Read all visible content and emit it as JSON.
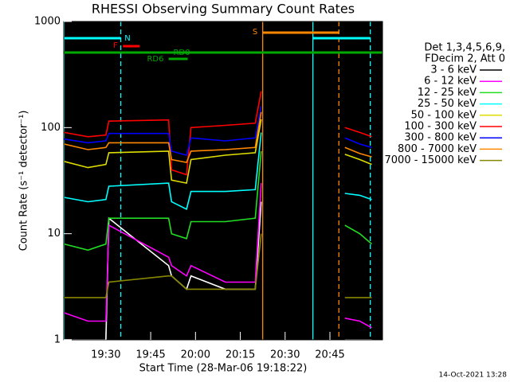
{
  "chart_data": {
    "type": "line",
    "title": "RHESSI Observing Summary Count Rates",
    "xlabel": "Start Time (28-Mar-06 19:18:22)",
    "ylabel": "Count Rate (s⁻¹ detector⁻¹)",
    "legend_header": [
      "Det 1,3,4,5,6,9,",
      "FDecim 2, Att 0"
    ],
    "footer": "14-Oct-2021 13:28",
    "log_y": true,
    "xlim": [
      15.9,
      122.6
    ],
    "xticks": [
      {
        "value": 30,
        "label": "19:30"
      },
      {
        "value": 45,
        "label": "19:45"
      },
      {
        "value": 60,
        "label": "20:00"
      },
      {
        "value": 75,
        "label": "20:15"
      },
      {
        "value": 90,
        "label": "20:30"
      },
      {
        "value": 105,
        "label": "20:45"
      }
    ],
    "ylim": [
      1,
      1000
    ],
    "yticks": [
      1,
      10,
      100,
      1000
    ],
    "x": [
      16,
      24,
      30,
      31,
      51,
      52,
      57,
      58.5,
      70,
      80,
      82,
      96,
      110,
      115,
      119
    ],
    "series": [
      {
        "name": "3 - 6 keV",
        "color": "#ffffff",
        "values": [
          1,
          1,
          1,
          14,
          5,
          4,
          3,
          4,
          3,
          3,
          20,
          null,
          1,
          1,
          1
        ]
      },
      {
        "name": "6 - 12 keV",
        "color": "#ff00ff",
        "values": [
          1.8,
          1.5,
          1.5,
          12,
          6,
          5,
          4,
          5,
          3.5,
          3.5,
          30,
          null,
          1.6,
          1.5,
          1.3
        ]
      },
      {
        "name": "12 - 25 keV",
        "color": "#22dd22",
        "values": [
          8,
          7,
          8,
          14,
          14,
          10,
          9,
          13,
          13,
          14,
          60,
          null,
          12,
          10,
          8
        ]
      },
      {
        "name": "25 - 50 keV",
        "color": "#00ffff",
        "values": [
          22,
          20,
          21,
          28,
          30,
          20,
          17,
          25,
          25,
          26,
          90,
          null,
          24,
          23,
          21
        ]
      },
      {
        "name": "50 - 100 keV",
        "color": "#dddd00",
        "values": [
          48,
          42,
          45,
          58,
          60,
          32,
          30,
          50,
          55,
          58,
          120,
          null,
          56,
          50,
          45
        ]
      },
      {
        "name": "100 - 300 keV",
        "color": "#ff0000",
        "values": [
          90,
          82,
          85,
          115,
          118,
          40,
          36,
          100,
          105,
          110,
          220,
          null,
          100,
          90,
          82
        ]
      },
      {
        "name": "300 - 800 keV",
        "color": "#0000ff",
        "values": [
          78,
          72,
          75,
          88,
          88,
          60,
          55,
          80,
          75,
          80,
          160,
          null,
          80,
          70,
          65
        ]
      },
      {
        "name": "800 - 7000 keV",
        "color": "#ff8800",
        "values": [
          70,
          62,
          65,
          72,
          72,
          50,
          47,
          60,
          62,
          65,
          140,
          null,
          65,
          57,
          53
        ]
      },
      {
        "name": "7000 - 15000 keV",
        "color": "#888800",
        "values": [
          2.5,
          2.5,
          2.5,
          3.5,
          4,
          4,
          3,
          3,
          3,
          3,
          10,
          null,
          2.5,
          2.5,
          2.5
        ]
      }
    ],
    "vlines": [
      {
        "x": 16,
        "color": "#00ffff",
        "dashed": false
      },
      {
        "x": 35,
        "color": "#00ffff",
        "dashed": true
      },
      {
        "x": 82.5,
        "color": "#ff8800",
        "dashed": false
      },
      {
        "x": 99.3,
        "color": "#00ffff",
        "dashed": false
      },
      {
        "x": 108,
        "color": "#ff8800",
        "dashed": true
      },
      {
        "x": 118.5,
        "color": "#00ffff",
        "dashed": true
      }
    ],
    "flags": [
      {
        "label": "N",
        "color": "#00ffff",
        "ranges": [
          [
            16,
            35
          ],
          [
            99.3,
            118.5
          ]
        ]
      },
      {
        "label": "F",
        "color": "#ff0000",
        "ranges": [
          [
            35.7,
            41.3
          ]
        ]
      },
      {
        "label": "RD0",
        "color": "#00aa00",
        "ranges": [
          [
            16,
            122.6
          ]
        ]
      },
      {
        "label": "RD6",
        "color": "#00aa00",
        "ranges": [
          [
            51,
            57.4
          ]
        ]
      },
      {
        "label": "S",
        "color": "#ff8800",
        "ranges": [
          [
            82.5,
            108
          ]
        ]
      }
    ]
  }
}
